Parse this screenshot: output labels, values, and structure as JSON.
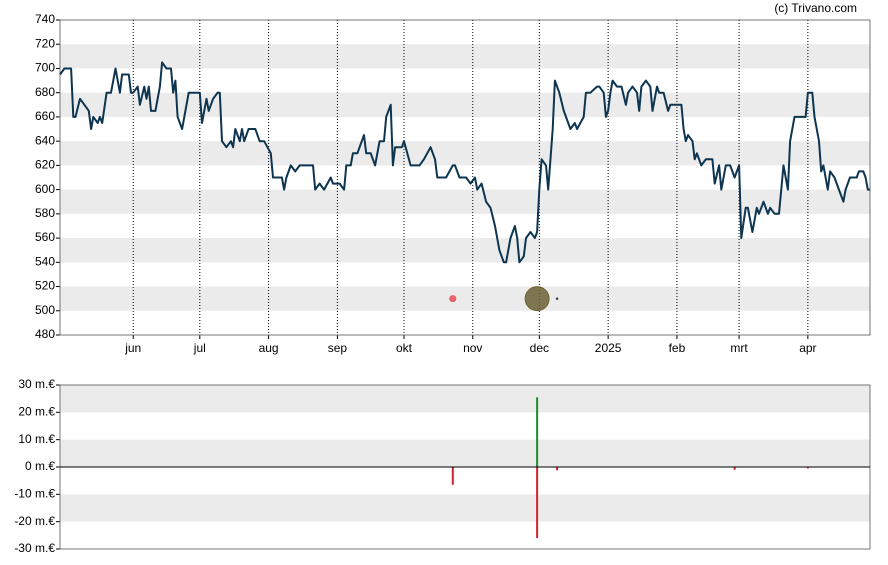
{
  "chart_data": [
    {
      "type": "line",
      "copyright": "(c) Trivano.com",
      "bands": "#ebebeb",
      "x": [
        0,
        2,
        5,
        6,
        7,
        9,
        11,
        13,
        14,
        15,
        17,
        18,
        19,
        21,
        23,
        25,
        27,
        28,
        31,
        32,
        33,
        35,
        36,
        38,
        39,
        40,
        41,
        43,
        45,
        46,
        48,
        50,
        51,
        52,
        53,
        55,
        56,
        58,
        59,
        61,
        63,
        64,
        66,
        67,
        69,
        71,
        72,
        73,
        75,
        77,
        78,
        79,
        81,
        82,
        83,
        85,
        88,
        90,
        92,
        95,
        96,
        100,
        101,
        102,
        104,
        106,
        108,
        114,
        115,
        117,
        119,
        122,
        123,
        126,
        128,
        129,
        131,
        132,
        134,
        135,
        137,
        138,
        140,
        142,
        144,
        146,
        147,
        149,
        150,
        151,
        154,
        155,
        158,
        162,
        164,
        167,
        169,
        170,
        174,
        177,
        178,
        180,
        183,
        185,
        187,
        188,
        190,
        192,
        194,
        196,
        198,
        200,
        201,
        203,
        205,
        206,
        207,
        209,
        210,
        212,
        214,
        215,
        216,
        217,
        219,
        220,
        222,
        223,
        225,
        227,
        228,
        230,
        232,
        233,
        236,
        237,
        239,
        242,
        243,
        245,
        246,
        247,
        248,
        249,
        251,
        253,
        255,
        256,
        258,
        260,
        261,
        262,
        264,
        266,
        267,
        269,
        270,
        272,
        274,
        275,
        278,
        280,
        281,
        282,
        283,
        285,
        286,
        287,
        289,
        291,
        292,
        294,
        295,
        297,
        298,
        300,
        302,
        304,
        306,
        307,
        309,
        310,
        312,
        314,
        315,
        317,
        319,
        320,
        322,
        324,
        326,
        328,
        329,
        331,
        333,
        336,
        337,
        339,
        340,
        342,
        343,
        344,
        346,
        347,
        349,
        351,
        353,
        354,
        356,
        359,
        360,
        362,
        363,
        364,
        365
      ],
      "series": [
        {
          "color": "#0d3550",
          "values": [
            695,
            700,
            700,
            660,
            660,
            675,
            670,
            665,
            650,
            660,
            655,
            660,
            655,
            680,
            680,
            700,
            680,
            695,
            695,
            680,
            680,
            685,
            670,
            685,
            675,
            685,
            665,
            665,
            685,
            705,
            700,
            700,
            680,
            690,
            660,
            650,
            660,
            680,
            680,
            680,
            680,
            655,
            675,
            665,
            675,
            680,
            680,
            640,
            635,
            640,
            635,
            650,
            640,
            650,
            640,
            650,
            650,
            640,
            640,
            630,
            610,
            610,
            600,
            610,
            620,
            615,
            620,
            620,
            600,
            605,
            600,
            610,
            605,
            605,
            600,
            620,
            620,
            630,
            630,
            635,
            645,
            630,
            630,
            620,
            640,
            640,
            660,
            670,
            620,
            635,
            635,
            640,
            620,
            620,
            625,
            635,
            625,
            610,
            610,
            620,
            620,
            610,
            610,
            605,
            610,
            600,
            605,
            590,
            585,
            570,
            550,
            540,
            540,
            560,
            570,
            560,
            540,
            545,
            560,
            565,
            560,
            565,
            600,
            625,
            620,
            600,
            650,
            690,
            680,
            665,
            660,
            650,
            655,
            650,
            660,
            680,
            680,
            685,
            685,
            680,
            660,
            665,
            680,
            690,
            685,
            685,
            670,
            680,
            685,
            680,
            665,
            685,
            690,
            685,
            665,
            685,
            680,
            680,
            665,
            670,
            670,
            670,
            650,
            640,
            645,
            640,
            625,
            630,
            620,
            625,
            625,
            625,
            605,
            620,
            600,
            620,
            620,
            610,
            620,
            560,
            585,
            585,
            565,
            585,
            580,
            590,
            580,
            585,
            580,
            580,
            620,
            600,
            640,
            660,
            660,
            660,
            680,
            680,
            660,
            640,
            615,
            620,
            600,
            615,
            610,
            600,
            590,
            600,
            610,
            610,
            615,
            615,
            610,
            600,
            600
          ]
        }
      ],
      "events": {
        "x": [
          177,
          215,
          224
        ],
        "values": [
          510,
          510,
          510
        ],
        "sizes": [
          3,
          12,
          0.8
        ],
        "colors": [
          "#e8555c",
          "#6b6235",
          "#444444"
        ]
      },
      "xlim": [
        0,
        365
      ],
      "xticks": [
        {
          "value": 33,
          "label": "jun"
        },
        {
          "value": 63,
          "label": "jul"
        },
        {
          "value": 94,
          "label": "aug"
        },
        {
          "value": 125,
          "label": "sep"
        },
        {
          "value": 155,
          "label": "okt"
        },
        {
          "value": 186,
          "label": "nov"
        },
        {
          "value": 216,
          "label": "dec"
        },
        {
          "value": 247,
          "label": "2025"
        },
        {
          "value": 278,
          "label": "feb"
        },
        {
          "value": 306,
          "label": "mrt"
        },
        {
          "value": 337,
          "label": "apr"
        }
      ],
      "ylim": [
        480,
        740
      ],
      "yticks": [
        480,
        500,
        520,
        540,
        560,
        580,
        600,
        620,
        640,
        660,
        680,
        700,
        720,
        740
      ]
    },
    {
      "type": "bar",
      "bands": "#ebebeb",
      "series": [
        {
          "color": "#d42030",
          "x": [
            177,
            215,
            224,
            304,
            337
          ],
          "values": [
            -6.5,
            -26,
            -1.2,
            -1,
            -0.5
          ]
        },
        {
          "color": "#1f8a2e",
          "x": [
            215
          ],
          "values": [
            25.5
          ]
        }
      ],
      "xlim": [
        0,
        365
      ],
      "ylim": [
        -30,
        30
      ],
      "yticks": [
        {
          "value": -30,
          "label": "-30 m.€"
        },
        {
          "value": -20,
          "label": "-20 m.€"
        },
        {
          "value": -10,
          "label": "-10 m.€"
        },
        {
          "value": 0,
          "label": "0 m.€"
        },
        {
          "value": 10,
          "label": "10 m.€"
        },
        {
          "value": 20,
          "label": "20 m.€"
        },
        {
          "value": 30,
          "label": "30 m.€"
        }
      ]
    }
  ]
}
